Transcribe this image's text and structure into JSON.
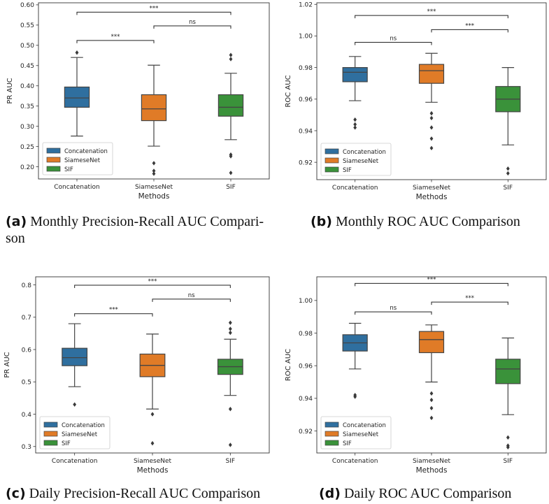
{
  "colors": {
    "concatenation": "#2f6f9f",
    "siamesenet": "#e07b27",
    "sif": "#3a923a",
    "median": "#333333"
  },
  "captions": [
    {
      "letter": "(a)",
      "text": "Monthly Precision-Recall AUC Compari-",
      "text2": "son"
    },
    {
      "letter": "(b)",
      "text": "Monthly ROC AUC Comparison"
    },
    {
      "letter": "(c)",
      "text": "Daily Precision-Recall AUC Comparison"
    },
    {
      "letter": "(d)",
      "text": "Daily ROC AUC Comparison"
    }
  ],
  "chart_data": [
    {
      "type": "box",
      "xlabel": "Methods",
      "ylabel": "PR AUC",
      "categories": [
        "Concatenation",
        "SiameseNet",
        "SIF"
      ],
      "ylim": [
        0.17,
        0.605
      ],
      "yticks": [
        "0.20",
        "0.25",
        "0.30",
        "0.35",
        "0.40",
        "0.45",
        "0.50",
        "0.55",
        "0.60"
      ],
      "legend": [
        "Concatenation",
        "SiameseNet",
        "SIF"
      ],
      "legend_position": "lower-left",
      "boxes": [
        {
          "min": 0.276,
          "q1": 0.347,
          "median": 0.37,
          "q3": 0.397,
          "max": 0.47,
          "outliers": [
            0.482
          ]
        },
        {
          "min": 0.251,
          "q1": 0.314,
          "median": 0.343,
          "q3": 0.378,
          "max": 0.451,
          "outliers": [
            0.209,
            0.19,
            0.183
          ]
        },
        {
          "min": 0.267,
          "q1": 0.325,
          "median": 0.347,
          "q3": 0.378,
          "max": 0.431,
          "outliers": [
            0.476,
            0.466,
            0.23,
            0.226,
            0.185
          ]
        }
      ],
      "significance": [
        {
          "from": 0,
          "to": 1,
          "level": 0.512,
          "label": "***"
        },
        {
          "from": 1,
          "to": 2,
          "level": 0.548,
          "label": "ns"
        },
        {
          "from": 0,
          "to": 2,
          "level": 0.582,
          "label": "***"
        }
      ]
    },
    {
      "type": "box",
      "xlabel": "Methods",
      "ylabel": "ROC AUC",
      "categories": [
        "Concatenation",
        "SiameseNet",
        "SIF"
      ],
      "ylim": [
        0.909,
        1.021
      ],
      "yticks": [
        "0.92",
        "0.94",
        "0.96",
        "0.98",
        "1.00",
        "1.02"
      ],
      "legend": [
        "Concatenation",
        "SiameseNet",
        "SIF"
      ],
      "legend_position": "lower-left",
      "boxes": [
        {
          "min": 0.959,
          "q1": 0.971,
          "median": 0.977,
          "q3": 0.98,
          "max": 0.987,
          "outliers": [
            0.947,
            0.944,
            0.942
          ]
        },
        {
          "min": 0.958,
          "q1": 0.97,
          "median": 0.978,
          "q3": 0.982,
          "max": 0.989,
          "outliers": [
            0.951,
            0.948,
            0.942,
            0.935,
            0.929
          ]
        },
        {
          "min": 0.931,
          "q1": 0.952,
          "median": 0.96,
          "q3": 0.968,
          "max": 0.98,
          "outliers": [
            0.916,
            0.913
          ]
        }
      ],
      "significance": [
        {
          "from": 0,
          "to": 1,
          "level": 0.996,
          "label": "ns"
        },
        {
          "from": 1,
          "to": 2,
          "level": 1.004,
          "label": "***"
        },
        {
          "from": 0,
          "to": 2,
          "level": 1.013,
          "label": "***"
        }
      ]
    },
    {
      "type": "box",
      "xlabel": "Methods",
      "ylabel": "PR AUC",
      "categories": [
        "Concatenation",
        "SiameseNet",
        "SIF"
      ],
      "ylim": [
        0.28,
        0.825
      ],
      "yticks": [
        "0.3",
        "0.4",
        "0.5",
        "0.6",
        "0.7",
        "0.8"
      ],
      "legend": [
        "Concatenation",
        "SiameseNet",
        "SIF"
      ],
      "legend_position": "lower-left",
      "boxes": [
        {
          "min": 0.485,
          "q1": 0.55,
          "median": 0.575,
          "q3": 0.604,
          "max": 0.68,
          "outliers": [
            0.43
          ]
        },
        {
          "min": 0.416,
          "q1": 0.516,
          "median": 0.551,
          "q3": 0.586,
          "max": 0.648,
          "outliers": [
            0.4,
            0.31
          ]
        },
        {
          "min": 0.458,
          "q1": 0.523,
          "median": 0.547,
          "q3": 0.57,
          "max": 0.632,
          "outliers": [
            0.683,
            0.664,
            0.652,
            0.416,
            0.305
          ]
        }
      ],
      "significance": [
        {
          "from": 0,
          "to": 1,
          "level": 0.711,
          "label": "***"
        },
        {
          "from": 1,
          "to": 2,
          "level": 0.756,
          "label": "ns"
        },
        {
          "from": 0,
          "to": 2,
          "level": 0.799,
          "label": "***"
        }
      ]
    },
    {
      "type": "box",
      "xlabel": "Methods",
      "ylabel": "ROC AUC",
      "categories": [
        "Concatenation",
        "SiameseNet",
        "SIF"
      ],
      "ylim": [
        0.9065,
        1.0145
      ],
      "yticks": [
        "0.92",
        "0.94",
        "0.96",
        "0.98",
        "1.00"
      ],
      "legend": [
        "Concatenation",
        "SiameseNet",
        "SIF"
      ],
      "legend_position": "lower-left",
      "boxes": [
        {
          "min": 0.958,
          "q1": 0.969,
          "median": 0.974,
          "q3": 0.979,
          "max": 0.986,
          "outliers": [
            0.942,
            0.941
          ]
        },
        {
          "min": 0.95,
          "q1": 0.968,
          "median": 0.976,
          "q3": 0.981,
          "max": 0.985,
          "outliers": [
            0.943,
            0.939,
            0.934,
            0.928
          ]
        },
        {
          "min": 0.93,
          "q1": 0.949,
          "median": 0.958,
          "q3": 0.964,
          "max": 0.977,
          "outliers": [
            0.916,
            0.911,
            0.91
          ]
        }
      ],
      "significance": [
        {
          "from": 0,
          "to": 1,
          "level": 0.993,
          "label": "ns"
        },
        {
          "from": 1,
          "to": 2,
          "level": 0.999,
          "label": "***"
        },
        {
          "from": 0,
          "to": 2,
          "level": 1.0105,
          "label": "***"
        }
      ]
    }
  ]
}
